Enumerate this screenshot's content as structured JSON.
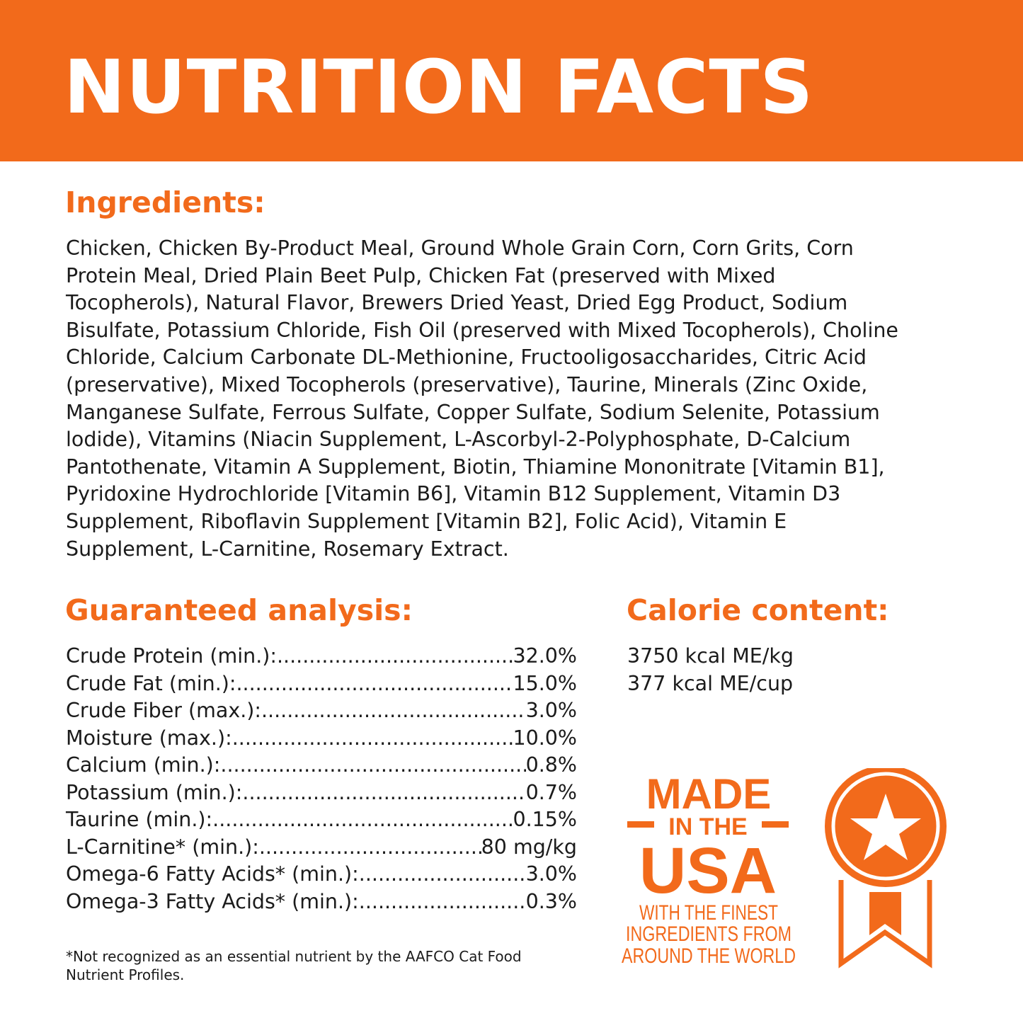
{
  "header": {
    "title": "NUTRITION FACTS"
  },
  "ingredients": {
    "heading": "Ingredients:",
    "lines": [
      "Chicken, Chicken By-Product Meal, Ground Whole Grain Corn, Corn Grits, Corn",
      "Protein Meal, Dried Plain Beet Pulp, Chicken Fat (preserved with Mixed",
      "Tocopherols), Natural Flavor, Brewers Dried Yeast, Dried Egg Product, Sodium",
      "Bisulfate, Potassium Chloride, Fish Oil (preserved with Mixed Tocopherols), Choline",
      "Chloride, Calcium Carbonate DL-Methionine, Fructooligosaccharides, Citric Acid",
      "(preservative), Mixed Tocopherols (preservative), Taurine, Minerals (Zinc Oxide,",
      "Manganese Sulfate, Ferrous Sulfate, Copper Sulfate, Sodium Selenite, Potassium",
      "lodide), Vitamins (Niacin Supplement, L-Ascorbyl-2-Polyphosphate, D-Calcium",
      "Pantothenate, Vitamin A Supplement, Biotin, Thiamine Mononitrate [Vitamin B1],",
      "Pyridoxine Hydrochloride [Vitamin B6], Vitamin B12 Supplement, Vitamin D3",
      "Supplement, Riboflavin Supplement [Vitamin B2], Folic Acid), Vitamin E",
      "Supplement, L-Carnitine, Rosemary Extract."
    ]
  },
  "analysis": {
    "heading": "Guaranteed analysis:",
    "rows": [
      {
        "label": "Crude Protein (min.):",
        "value": "32.0%"
      },
      {
        "label": "Crude Fat (min.):",
        "value": "15.0%"
      },
      {
        "label": "Crude Fiber (max.):",
        "value": "3.0%"
      },
      {
        "label": "Moisture (max.):",
        "value": "10.0%"
      },
      {
        "label": "Calcium (min.):",
        "value": "0.8%"
      },
      {
        "label": "Potassium (min.):",
        "value": "0.7%"
      },
      {
        "label": "Taurine (min.):",
        "value": "0.15%"
      },
      {
        "label": "L-Carnitine* (min.):",
        "value": "80 mg/kg"
      },
      {
        "label": "Omega-6 Fatty Acids* (min.):",
        "value": "3.0%"
      },
      {
        "label": "Omega-3 Fatty Acids* (min.):",
        "value": "0.3%"
      }
    ],
    "footnote": [
      "*Not recognized as an essential nutrient by the AAFCO Cat Food",
      "Nutrient Profiles."
    ]
  },
  "calorie": {
    "heading": "Calorie content:",
    "lines": [
      "3750 kcal ME/kg",
      "377 kcal ME/cup"
    ]
  },
  "badge": {
    "line1": "MADE",
    "line2": "IN THE",
    "line3": "USA",
    "line4": "WITH THE FINEST",
    "line5": "INGREDIENTS FROM",
    "line6": "AROUND THE WORLD",
    "icon": "award-ribbon-star-icon"
  },
  "colors": {
    "accent": "#f26a1b",
    "text": "#1b1b1b"
  }
}
